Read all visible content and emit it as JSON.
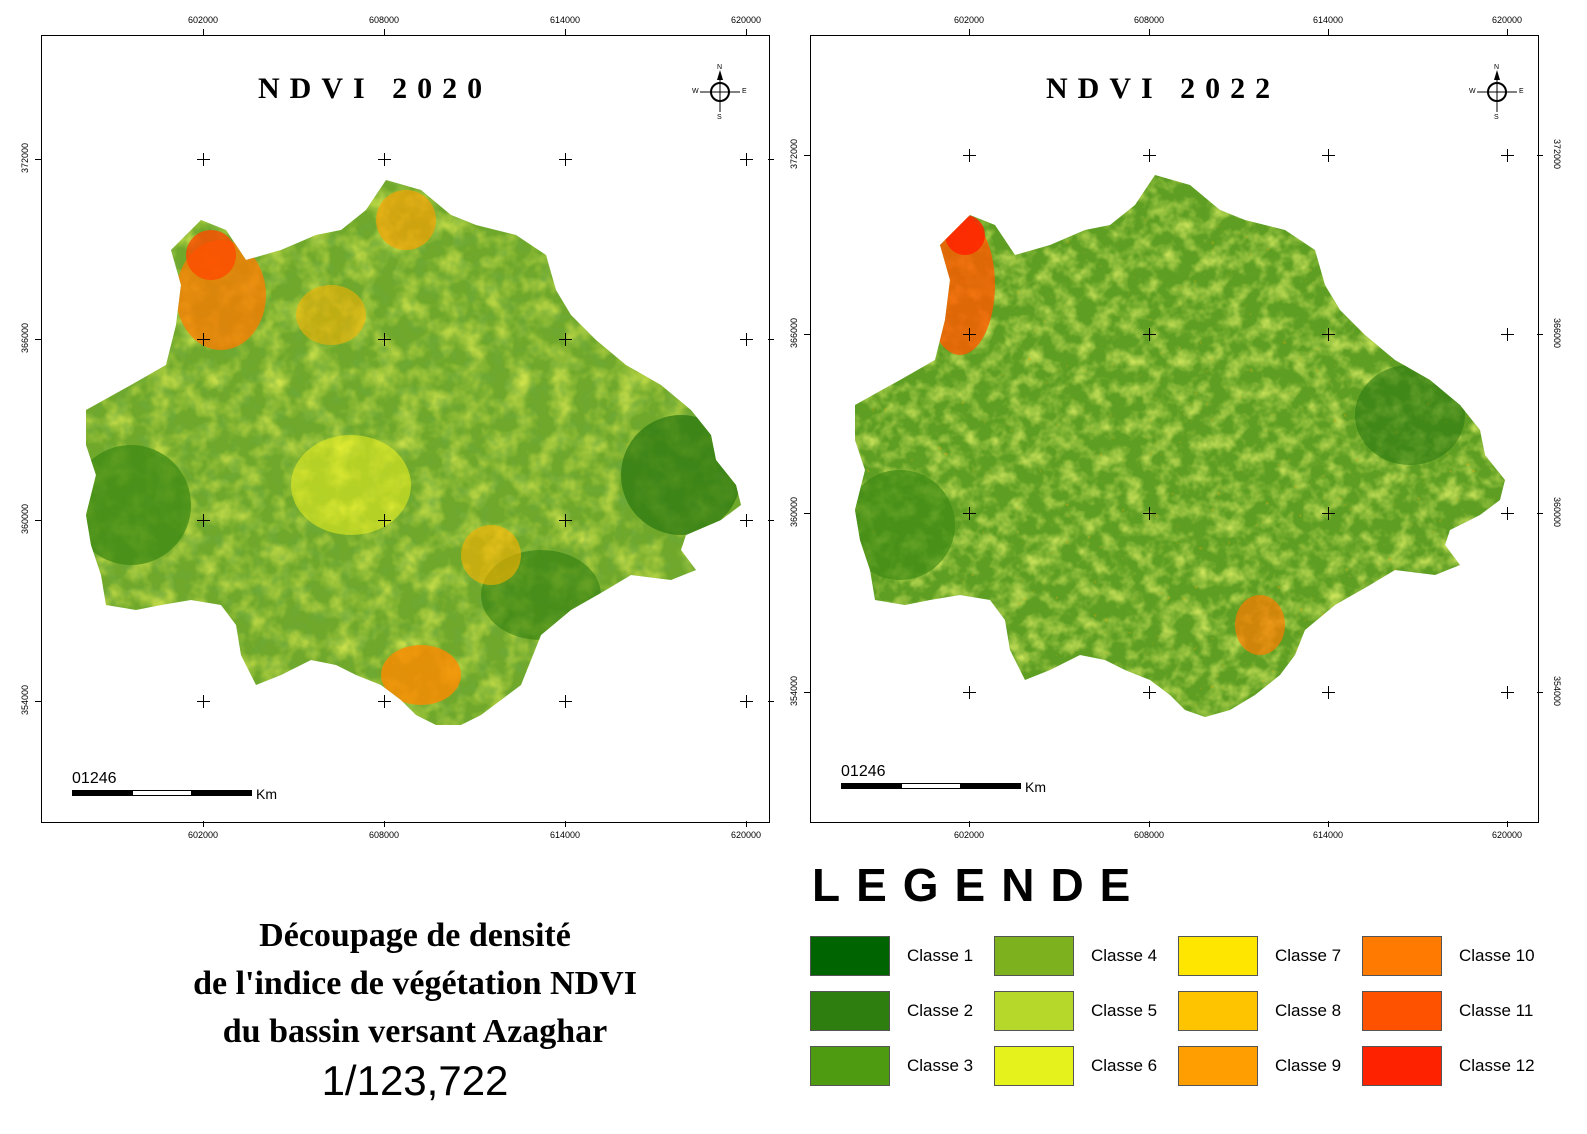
{
  "maps": [
    {
      "title": "NDVI 2020",
      "x_ticks": [
        "602000",
        "608000",
        "614000",
        "620000"
      ],
      "y_ticks": [
        "372000",
        "366000",
        "360000",
        "354000"
      ],
      "scale_numbers": [
        "0",
        "1",
        "2",
        "4",
        "6"
      ],
      "scale_unit": "Km",
      "compass": {
        "n": "N",
        "s": "S",
        "e": "E",
        "w": "W"
      }
    },
    {
      "title": "NDVI 2022",
      "x_ticks": [
        "602000",
        "608000",
        "614000",
        "620000"
      ],
      "y_ticks": [
        "372000",
        "366000",
        "360000",
        "354000"
      ],
      "scale_numbers": [
        "0",
        "1",
        "2",
        "4",
        "6"
      ],
      "scale_unit": "Km",
      "compass": {
        "n": "N",
        "s": "S",
        "e": "E",
        "w": "W"
      }
    }
  ],
  "legend": {
    "title": "LEGENDE",
    "classes": [
      {
        "label": "Classe 1",
        "color": "#006400"
      },
      {
        "label": "Classe 2",
        "color": "#2E7D0F"
      },
      {
        "label": "Classe 3",
        "color": "#4E9A10"
      },
      {
        "label": "Classe 4",
        "color": "#7DB21E"
      },
      {
        "label": "Classe 5",
        "color": "#B5D82A"
      },
      {
        "label": "Classe 6",
        "color": "#E6F21C"
      },
      {
        "label": "Classe 7",
        "color": "#FFE600"
      },
      {
        "label": "Classe 8",
        "color": "#FFC400"
      },
      {
        "label": "Classe 9",
        "color": "#FF9E00"
      },
      {
        "label": "Classe 10",
        "color": "#FF7A00"
      },
      {
        "label": "Classe 11",
        "color": "#FF5200"
      },
      {
        "label": "Classe 12",
        "color": "#FF2200"
      }
    ]
  },
  "caption": {
    "lines": [
      "Découpage de densité",
      "de l'indice de végétation NDVI",
      "du bassin versant Azaghar"
    ],
    "scale": "1/123,722"
  }
}
